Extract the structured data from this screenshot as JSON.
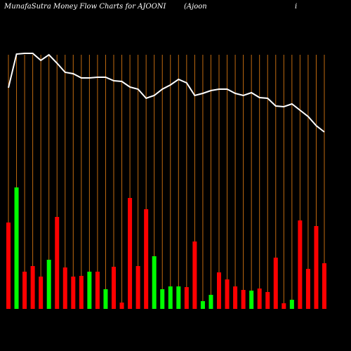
{
  "chart_data": {
    "type": "bar-line",
    "title": "MunafaSutra  Money Flow  Charts for AJOONI",
    "subtitle": "(Ajoon",
    "subtitle_end": "i",
    "ylim": [
      0,
      440
    ],
    "series": [
      {
        "type": "bar",
        "values": [
          123,
          173,
          53,
          61,
          46,
          70,
          131,
          59,
          46,
          47,
          53,
          53,
          28,
          60,
          9,
          158,
          61,
          142,
          75,
          28,
          32,
          32,
          31,
          96,
          11,
          20,
          52,
          42,
          32,
          27,
          26,
          29,
          24,
          73,
          8,
          13,
          126,
          57,
          118,
          65
        ],
        "colors": [
          "#ff0000",
          "#00ff00",
          "#ff0000",
          "#ff0000",
          "#ff0000",
          "#00ff00",
          "#ff0000",
          "#ff0000",
          "#ff0000",
          "#ff0000",
          "#00ff00",
          "#ff0000",
          "#00ff00",
          "#ff0000",
          "#ff0000",
          "#ff0000",
          "#ff0000",
          "#ff0000",
          "#00ff00",
          "#00ff00",
          "#00ff00",
          "#00ff00",
          "#ff0000",
          "#ff0000",
          "#00ff00",
          "#00ff00",
          "#ff0000",
          "#ff0000",
          "#ff0000",
          "#ff0000",
          "#00ff00",
          "#ff0000",
          "#ff0000",
          "#ff0000",
          "#ff0000",
          "#00ff00",
          "#ff0000",
          "#ff0000",
          "#ff0000",
          "#ff0000"
        ]
      },
      {
        "type": "line",
        "color": "#ffffff",
        "values": [
          315,
          363,
          364,
          364,
          354,
          362,
          350,
          337,
          335,
          329,
          329,
          330,
          330,
          325,
          324,
          316,
          313,
          300,
          304,
          313,
          319,
          327,
          322,
          304,
          307,
          311,
          313,
          313,
          307,
          304,
          308,
          301,
          300,
          289,
          288,
          292,
          283,
          274,
          261,
          252
        ]
      }
    ],
    "gridline_color": "#c06a10"
  }
}
